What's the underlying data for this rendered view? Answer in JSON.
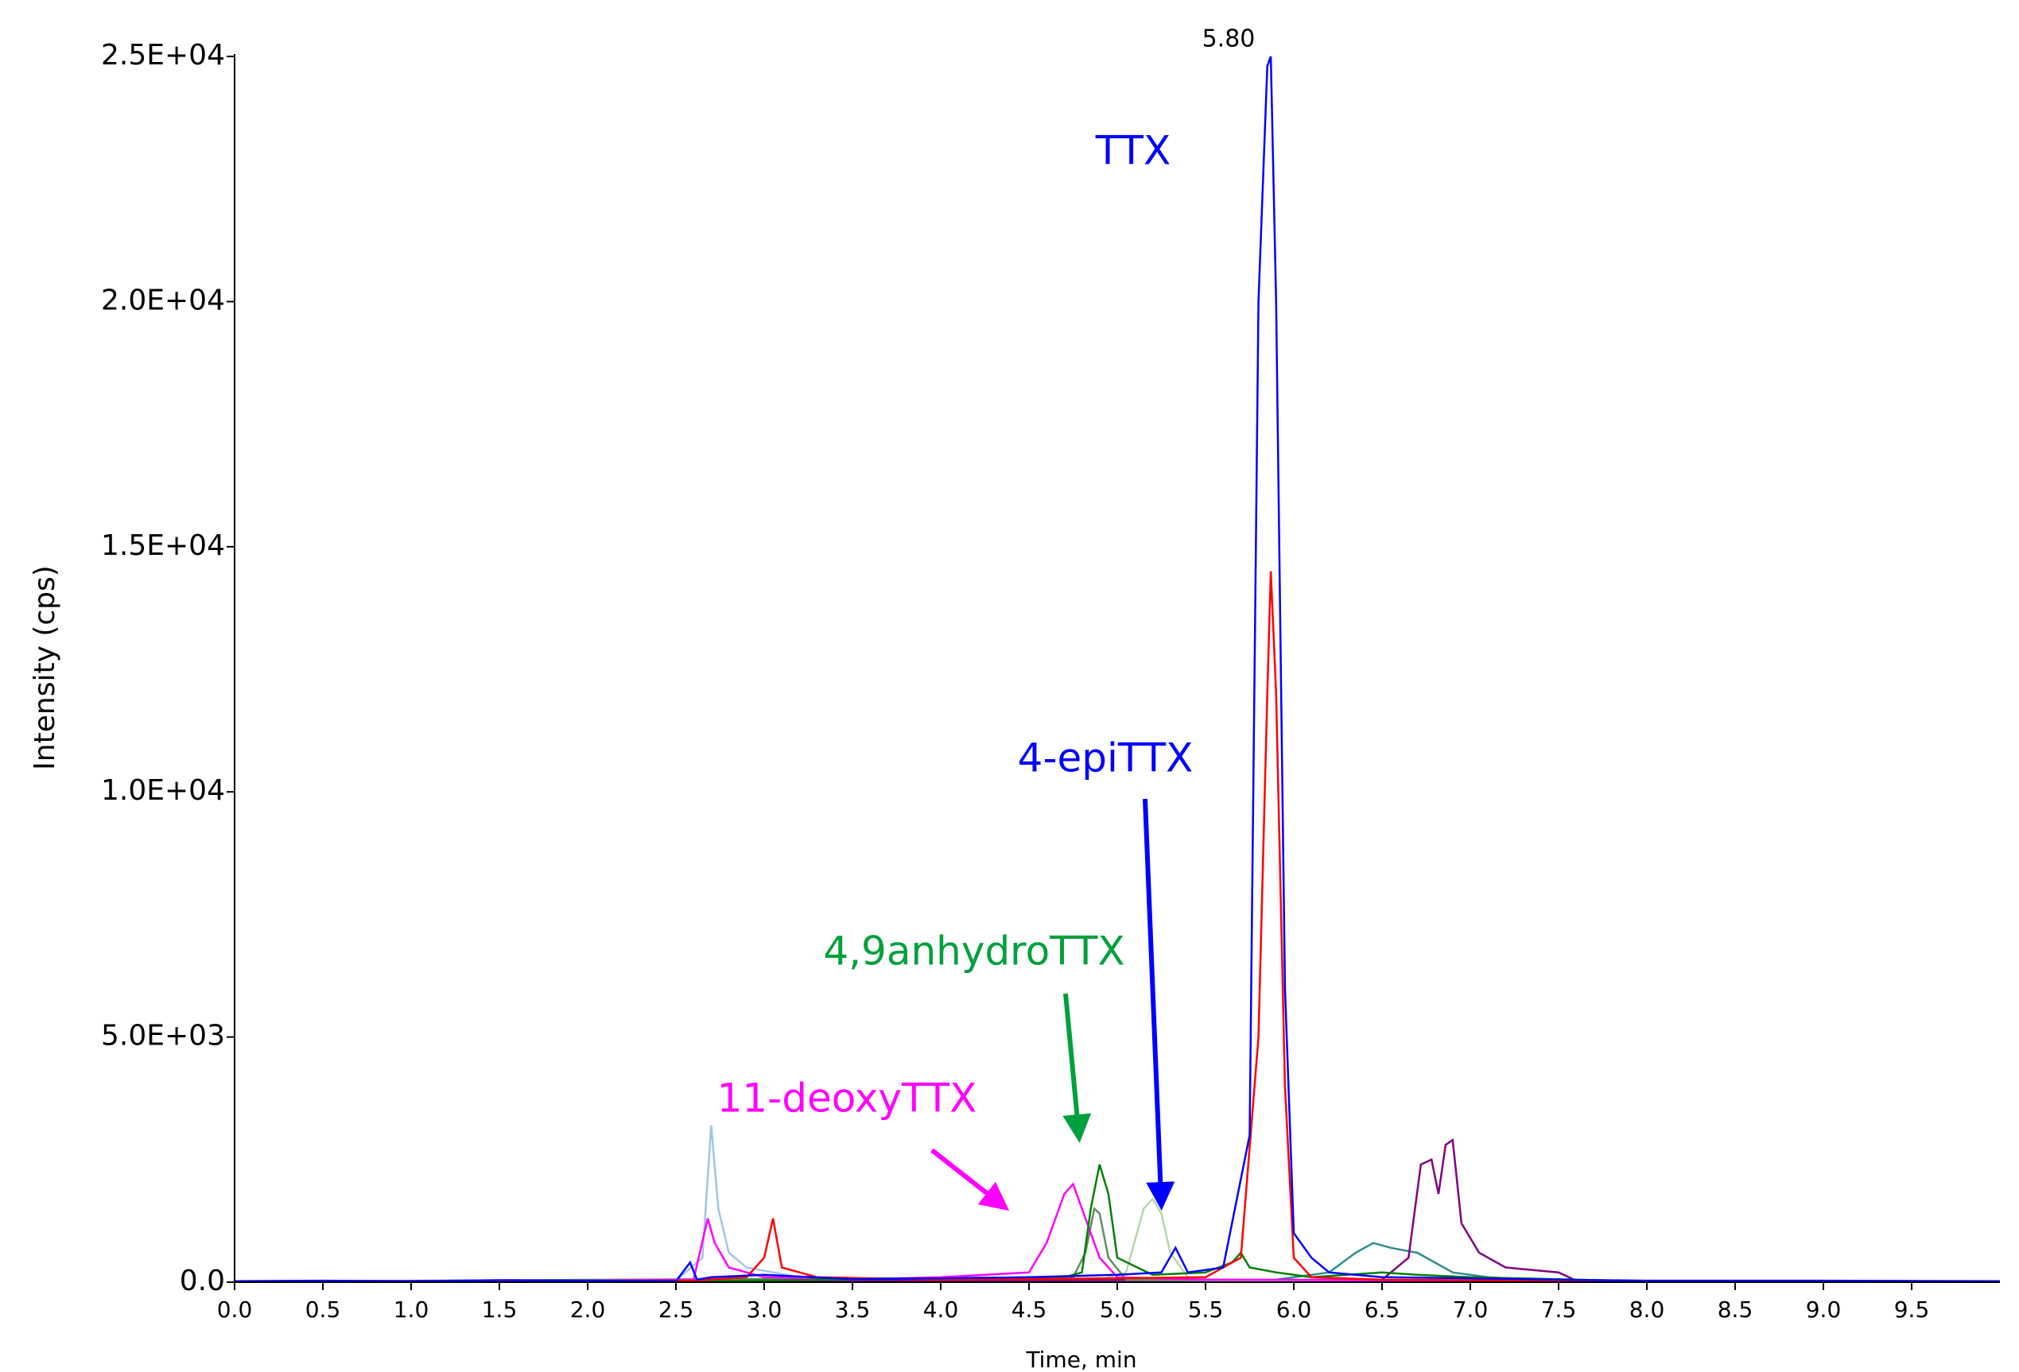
{
  "chart_data": {
    "type": "line",
    "x_label": "Time, min",
    "y_label": "Intensity (cps)",
    "xlim": [
      0,
      10
    ],
    "ylim": [
      0,
      25000
    ],
    "xticks": [
      {
        "value": 0,
        "label": "0.0"
      },
      0.5,
      {
        "value": 1,
        "label": "1.0"
      },
      1.5,
      {
        "value": 2,
        "label": "2.0"
      },
      2.5,
      {
        "value": 3,
        "label": "3.0"
      },
      3.5,
      {
        "value": 4,
        "label": "4.0"
      },
      4.5,
      {
        "value": 5,
        "label": "5.0"
      },
      5.5,
      {
        "value": 6,
        "label": "6.0"
      },
      6.5,
      {
        "value": 7,
        "label": "7.0"
      },
      7.5,
      {
        "value": 8,
        "label": "8.0"
      },
      8.5,
      {
        "value": 9,
        "label": "9.0"
      },
      9.5
    ],
    "yticks": [
      {
        "value": 0,
        "label": "0.0"
      },
      {
        "value": 5000,
        "label": "5.0E+03"
      },
      {
        "value": 10000,
        "label": "1.0E+04"
      },
      {
        "value": 15000,
        "label": "1.5E+04"
      },
      {
        "value": 20000,
        "label": "2.0E+04"
      },
      {
        "value": 25000,
        "label": "2.5E+04"
      }
    ],
    "annotations": [
      {
        "text": "5.80",
        "color": "#000000"
      },
      {
        "text": "TTX",
        "color": "#0000ff"
      },
      {
        "text": "4-epiTTX",
        "color": "#0000ff"
      },
      {
        "text": "4,9anhydroTTX",
        "color": "#00a03c"
      },
      {
        "text": "11-deoxyTTX",
        "color": "#ff00ff"
      }
    ],
    "series": [
      {
        "color": "#9fc5e8",
        "x": [
          0,
          2.5,
          2.65,
          2.7,
          2.74,
          2.8,
          2.9,
          3.2,
          3.5,
          5,
          10
        ],
        "values": [
          10,
          30,
          500,
          3200,
          1500,
          600,
          300,
          100,
          30,
          20,
          10
        ]
      },
      {
        "color": "#b6d7a8",
        "x": [
          0,
          4.9,
          5.05,
          5.15,
          5.2,
          5.25,
          5.3,
          5.4,
          5.6,
          10
        ],
        "values": [
          10,
          50,
          200,
          1500,
          1700,
          1400,
          600,
          100,
          30,
          10
        ]
      },
      {
        "color": "#2e8b8b",
        "x": [
          0,
          5.9,
          6.2,
          6.35,
          6.45,
          6.55,
          6.7,
          6.9,
          7.1,
          7.5,
          10
        ],
        "values": [
          10,
          50,
          200,
          600,
          800,
          700,
          600,
          200,
          100,
          20,
          10
        ]
      },
      {
        "color": "#800080",
        "x": [
          0,
          6.5,
          6.65,
          6.72,
          6.78,
          6.82,
          6.86,
          6.9,
          6.95,
          7.05,
          7.2,
          7.5,
          7.6,
          10
        ],
        "values": [
          10,
          50,
          500,
          2400,
          2500,
          1800,
          2800,
          2900,
          1200,
          600,
          300,
          200,
          30,
          10
        ]
      },
      {
        "color": "#5f8f5f",
        "x": [
          0,
          4.75,
          4.82,
          4.87,
          4.9,
          4.95,
          5.05,
          10
        ],
        "values": [
          10,
          100,
          600,
          1500,
          1400,
          500,
          50,
          10
        ]
      },
      {
        "color": "#ff00ff",
        "x": [
          0,
          2,
          2.6,
          2.68,
          2.72,
          2.8,
          3,
          3.5,
          4,
          4.5,
          4.6,
          4.7,
          4.75,
          4.8,
          4.9,
          5,
          5.5,
          7,
          10
        ],
        "values": [
          20,
          30,
          50,
          1300,
          800,
          300,
          100,
          50,
          100,
          200,
          800,
          1800,
          2000,
          1500,
          500,
          100,
          50,
          30,
          20
        ]
      },
      {
        "color": "#008000",
        "x": [
          0,
          2.5,
          4.7,
          4.8,
          4.85,
          4.9,
          4.95,
          5.0,
          5.2,
          5.5,
          5.65,
          5.7,
          5.75,
          5.9,
          6.1,
          6.5,
          6.7,
          7,
          8,
          10
        ],
        "values": [
          10,
          20,
          100,
          200,
          1500,
          2400,
          1800,
          500,
          150,
          200,
          400,
          600,
          300,
          200,
          100,
          200,
          150,
          100,
          20,
          10
        ]
      },
      {
        "color": "#ff0000",
        "x": [
          0,
          1,
          2,
          2.6,
          2.9,
          3.0,
          3.05,
          3.1,
          3.3,
          4,
          5,
          5.5,
          5.7,
          5.8,
          5.85,
          5.87,
          5.9,
          5.95,
          6.0,
          6.1,
          6.5,
          7,
          8,
          10
        ],
        "values": [
          10,
          20,
          10,
          30,
          100,
          500,
          1300,
          300,
          100,
          50,
          80,
          100,
          500,
          5000,
          12000,
          14500,
          12000,
          4000,
          500,
          100,
          50,
          40,
          20,
          10
        ]
      },
      {
        "color": "#0000ff",
        "x": [
          0,
          0.5,
          1,
          1.5,
          2,
          2.5,
          2.58,
          2.62,
          2.7,
          3,
          3.5,
          4,
          4.5,
          5,
          5.25,
          5.33,
          5.4,
          5.6,
          5.75,
          5.8,
          5.85,
          5.87,
          5.9,
          5.95,
          6.0,
          6.1,
          6.2,
          6.5,
          7,
          7.5,
          8,
          9,
          10
        ],
        "values": [
          20,
          30,
          20,
          40,
          30,
          20,
          400,
          50,
          100,
          150,
          60,
          80,
          100,
          150,
          200,
          700,
          200,
          300,
          3000,
          20000,
          24800,
          25000,
          20000,
          6000,
          1000,
          500,
          200,
          100,
          80,
          50,
          30,
          30,
          20
        ]
      }
    ]
  }
}
